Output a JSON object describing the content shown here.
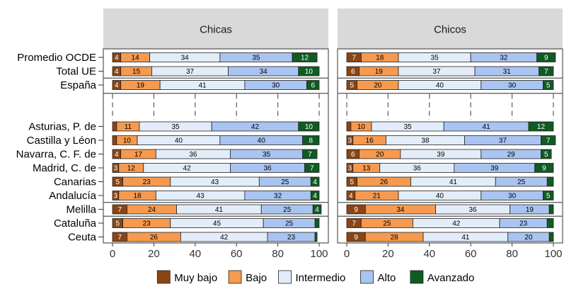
{
  "chart_data": {
    "type": "bar",
    "orientation": "horizontal",
    "stacked": true,
    "facets": [
      "Chicas",
      "Chicos"
    ],
    "categories": [
      "Promedio OCDE",
      "Total UE",
      "España",
      "",
      "Asturias, P. de",
      "Castilla y Léon",
      "Navarra, C. F. de",
      "Madrid, C. de",
      "Canarias",
      "Andalucía",
      "Melilla",
      "Cataluña",
      "Ceuta"
    ],
    "levels": [
      "Muy bajo",
      "Bajo",
      "Intermedio",
      "Alto",
      "Avanzado"
    ],
    "colors": [
      "#8b4513",
      "#f59a4f",
      "#e3edfa",
      "#a9c4f0",
      "#0f5b23"
    ],
    "xlim": [
      0,
      100
    ],
    "xticks": [
      "0",
      "20",
      "40",
      "60",
      "80",
      "100"
    ],
    "values": {
      "Chicas": [
        [
          4,
          14,
          34,
          35,
          12
        ],
        [
          4,
          15,
          37,
          34,
          10
        ],
        [
          4,
          19,
          41,
          30,
          6
        ],
        null,
        [
          2,
          11,
          35,
          42,
          10
        ],
        [
          2,
          10,
          40,
          40,
          8
        ],
        [
          4,
          17,
          36,
          35,
          7
        ],
        [
          3,
          12,
          42,
          36,
          7
        ],
        [
          5,
          23,
          43,
          25,
          4
        ],
        [
          3,
          18,
          43,
          32,
          4
        ],
        [
          7,
          24,
          41,
          25,
          4
        ],
        [
          5,
          23,
          45,
          25,
          2
        ],
        [
          7,
          26,
          42,
          23,
          1
        ]
      ],
      "Chicos": [
        [
          7,
          18,
          35,
          32,
          9
        ],
        [
          6,
          19,
          37,
          31,
          7
        ],
        [
          5,
          20,
          40,
          30,
          5
        ],
        null,
        [
          2,
          10,
          35,
          41,
          12
        ],
        [
          3,
          16,
          38,
          37,
          7
        ],
        [
          6,
          20,
          39,
          29,
          5
        ],
        [
          3,
          13,
          36,
          39,
          9
        ],
        [
          5,
          26,
          41,
          25,
          3
        ],
        [
          4,
          21,
          40,
          30,
          5
        ],
        [
          9,
          34,
          36,
          19,
          2
        ],
        [
          7,
          25,
          42,
          23,
          3
        ],
        [
          9,
          28,
          41,
          20,
          2
        ]
      ]
    },
    "dashed_reference_row": 3,
    "row_separators_after": [
      1,
      2,
      9,
      10
    ],
    "legend_position": "bottom"
  }
}
